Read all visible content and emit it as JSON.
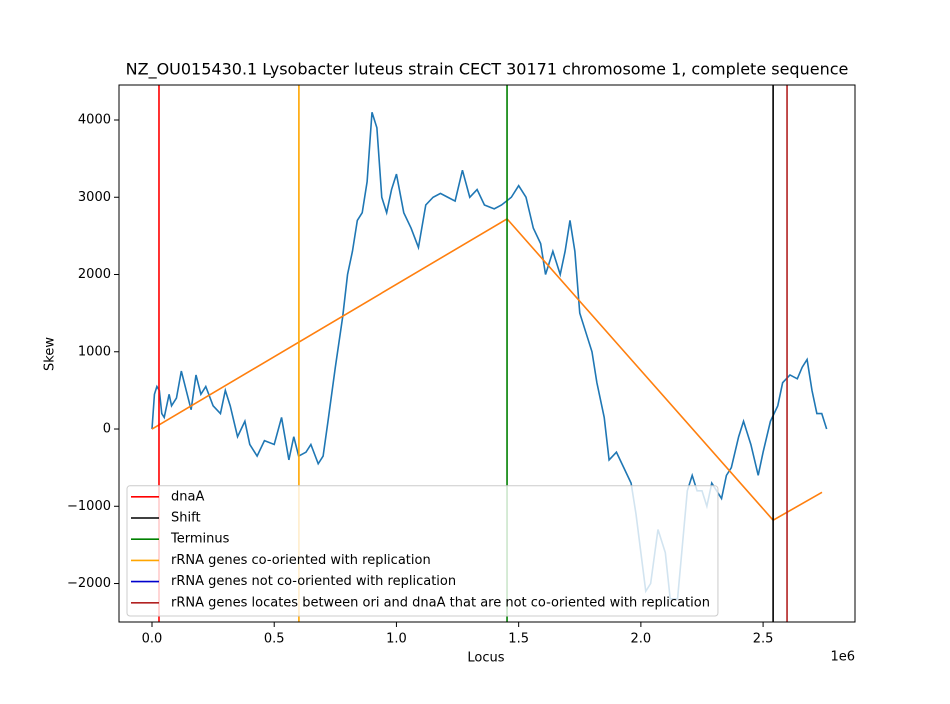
{
  "chart_data": {
    "type": "line",
    "title": "NZ_OU015430.1 Lysobacter luteus strain CECT 30171 chromosome 1, complete sequence",
    "xlabel": "Locus",
    "ylabel": "Skew",
    "x_offset_label": "1e6",
    "xlim": [
      -0.135,
      2.876
    ],
    "ylim": [
      -2498,
      4453
    ],
    "xticks": [
      {
        "value": 0,
        "label": "0.0"
      },
      0.5,
      {
        "value": 1,
        "label": "1.0"
      },
      1.5,
      {
        "value": 2,
        "label": "2.0"
      },
      2.5
    ],
    "yticks": [
      {
        "value": -2000,
        "label": "−2000"
      },
      {
        "value": -1000,
        "label": "−1000"
      },
      0,
      1000,
      2000,
      3000,
      4000
    ],
    "legend": "lower left",
    "series": [
      {
        "color": "#1f77b4",
        "x": [
          0,
          0.01,
          0.02,
          0.03,
          0.04,
          0.05,
          0.07,
          0.08,
          0.1,
          0.12,
          0.14,
          0.16,
          0.18,
          0.2,
          0.22,
          0.25,
          0.28,
          0.3,
          0.32,
          0.35,
          0.38,
          0.4,
          0.43,
          0.46,
          0.5,
          0.53,
          0.56,
          0.58,
          0.6,
          0.63,
          0.65,
          0.68,
          0.7,
          0.72,
          0.75,
          0.78,
          0.8,
          0.82,
          0.84,
          0.86,
          0.88,
          0.9,
          0.92,
          0.94,
          0.96,
          0.98,
          1.0,
          1.03,
          1.06,
          1.09,
          1.12,
          1.15,
          1.18,
          1.21,
          1.24,
          1.27,
          1.3,
          1.33,
          1.36,
          1.4,
          1.43,
          1.47,
          1.5,
          1.53,
          1.56,
          1.59,
          1.61,
          1.64,
          1.67,
          1.69,
          1.71,
          1.73,
          1.75,
          1.78,
          1.8,
          1.82,
          1.85,
          1.87,
          1.9,
          1.93,
          1.96,
          1.98,
          2.0,
          2.02,
          2.04,
          2.07,
          2.1,
          2.12,
          2.15,
          2.17,
          2.19,
          2.21,
          2.23,
          2.25,
          2.27,
          2.29,
          2.31,
          2.33,
          2.35,
          2.37,
          2.4,
          2.42,
          2.45,
          2.48,
          2.5,
          2.53,
          2.56,
          2.58,
          2.61,
          2.64,
          2.66,
          2.68,
          2.7,
          2.72,
          2.74,
          2.76
        ],
        "values": [
          0,
          450,
          550,
          500,
          200,
          150,
          450,
          300,
          400,
          750,
          500,
          250,
          700,
          450,
          550,
          300,
          200,
          500,
          300,
          -100,
          100,
          -200,
          -350,
          -150,
          -200,
          150,
          -400,
          -100,
          -350,
          -300,
          -200,
          -450,
          -350,
          100,
          800,
          1450,
          2000,
          2300,
          2700,
          2800,
          3200,
          4100,
          3900,
          3000,
          2800,
          3100,
          3300,
          2800,
          2600,
          2350,
          2900,
          3000,
          3050,
          3000,
          2950,
          3350,
          3000,
          3100,
          2900,
          2850,
          2900,
          3000,
          3150,
          3000,
          2600,
          2400,
          2000,
          2300,
          2000,
          2300,
          2700,
          2300,
          1500,
          1200,
          1000,
          600,
          150,
          -400,
          -300,
          -500,
          -700,
          -1100,
          -1600,
          -2100,
          -2000,
          -1300,
          -1600,
          -2200,
          -2200,
          -1500,
          -800,
          -600,
          -800,
          -800,
          -1000,
          -700,
          -800,
          -900,
          -600,
          -500,
          -100,
          100,
          -200,
          -600,
          -300,
          100,
          300,
          600,
          700,
          650,
          800,
          900,
          500,
          200,
          200,
          0
        ]
      },
      {
        "color": "#ff7f0e",
        "x": [
          0,
          1.4525,
          2.541,
          2.741
        ],
        "values": [
          0,
          2720,
          -1180,
          -820
        ]
      }
    ],
    "markers": [
      {
        "name": "dnaA",
        "color": "#ff0000",
        "x": [
          0.0286
        ]
      },
      {
        "name": "Shift",
        "color": "#000000",
        "x": [
          2.541
        ]
      },
      {
        "name": "Terminus",
        "color": "#008000",
        "x": [
          1.4525
        ]
      },
      {
        "name": "rRNA genes co-oriented with replication",
        "color": "#ffa500",
        "x": [
          0.601
        ]
      },
      {
        "name": "rRNA genes not co-oriented with replication",
        "color": "#0000cd",
        "x": []
      },
      {
        "name": "rRNA genes locates between ori and dnaA that are not co-oriented with replication",
        "color": "#b22222",
        "x": [
          2.598
        ]
      }
    ]
  }
}
